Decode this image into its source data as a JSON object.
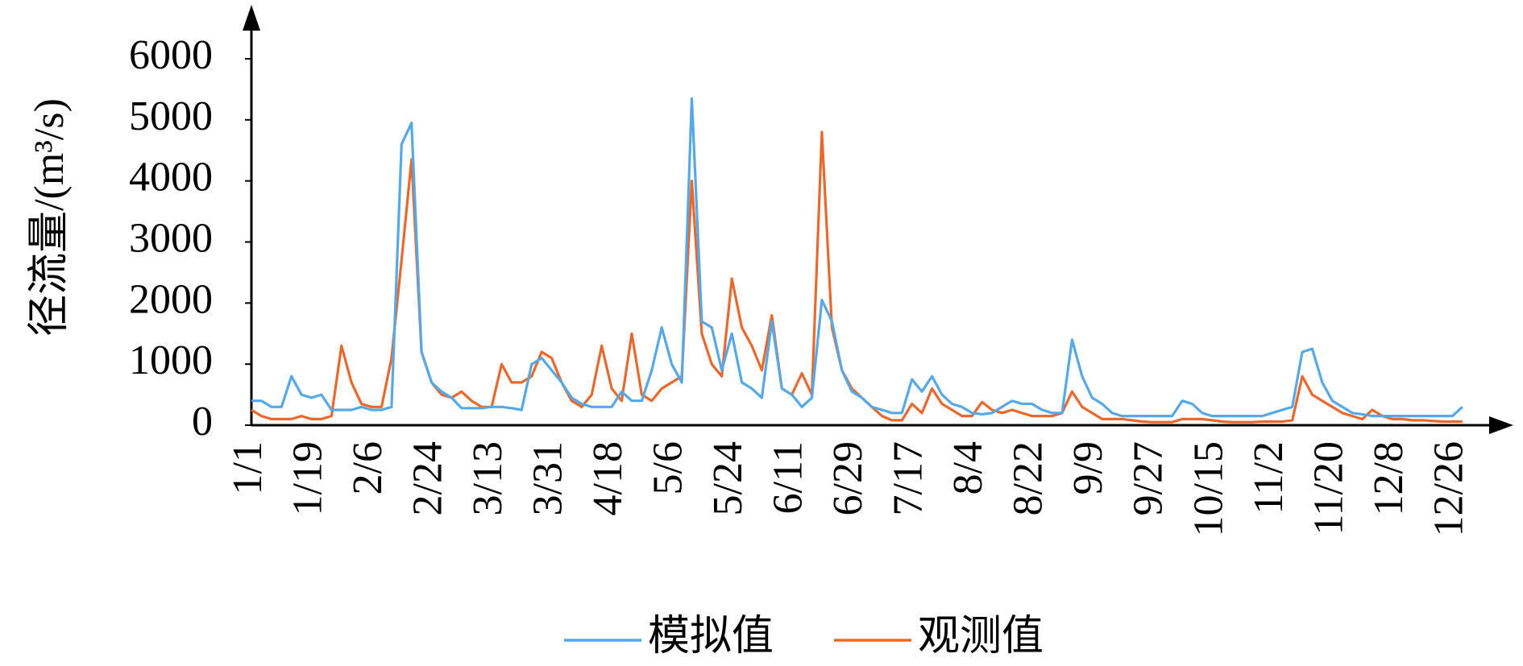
{
  "chart_data": {
    "type": "line",
    "y_label": "径流量/(m³/s)",
    "categories": [
      "1/1",
      null,
      null,
      null,
      null,
      null,
      "1/19",
      null,
      null,
      null,
      null,
      null,
      "2/6",
      null,
      null,
      null,
      null,
      null,
      "2/24",
      null,
      null,
      null,
      null,
      null,
      "3/13",
      null,
      null,
      null,
      null,
      null,
      "3/31",
      null,
      null,
      null,
      null,
      null,
      "4/18",
      null,
      null,
      null,
      null,
      null,
      "5/6",
      null,
      null,
      null,
      null,
      null,
      "5/24",
      null,
      null,
      null,
      null,
      null,
      "6/11",
      null,
      null,
      null,
      null,
      null,
      "6/29",
      null,
      null,
      null,
      null,
      null,
      "7/17",
      null,
      null,
      null,
      null,
      null,
      "8/4",
      null,
      null,
      null,
      null,
      null,
      "8/22",
      null,
      null,
      null,
      null,
      null,
      "9/9",
      null,
      null,
      null,
      null,
      null,
      "9/27",
      null,
      null,
      null,
      null,
      null,
      "10/15",
      null,
      null,
      null,
      null,
      null,
      "11/2",
      null,
      null,
      null,
      null,
      null,
      "11/20",
      null,
      null,
      null,
      null,
      null,
      "12/8",
      null,
      null,
      null,
      null,
      null,
      "12/26",
      null
    ],
    "series": [
      {
        "name": "模拟值",
        "color": "#56a8e6",
        "values": [
          400,
          400,
          300,
          300,
          800,
          500,
          450,
          500,
          250,
          250,
          250,
          300,
          250,
          250,
          300,
          4600,
          4950,
          1200,
          700,
          550,
          450,
          280,
          280,
          280,
          300,
          300,
          280,
          250,
          1000,
          1100,
          900,
          700,
          450,
          350,
          300,
          300,
          300,
          550,
          400,
          400,
          900,
          1600,
          1000,
          700,
          5350,
          1700,
          1600,
          900,
          1500,
          700,
          600,
          450,
          1700,
          600,
          500,
          300,
          450,
          2050,
          1700,
          900,
          550,
          450,
          300,
          250,
          200,
          200,
          750,
          550,
          800,
          500,
          350,
          300,
          200,
          180,
          200,
          300,
          400,
          350,
          350,
          250,
          200,
          200,
          1400,
          800,
          450,
          350,
          200,
          150,
          150,
          150,
          150,
          150,
          150,
          400,
          350,
          200,
          150,
          150,
          150,
          150,
          150,
          150,
          200,
          250,
          300,
          1200,
          1250,
          700,
          400,
          300,
          200,
          180,
          150,
          150,
          150,
          150,
          150,
          150,
          150,
          150,
          150,
          300
        ]
      },
      {
        "name": "观测值",
        "color": "#e8692e",
        "values": [
          250,
          150,
          100,
          100,
          100,
          150,
          100,
          100,
          150,
          1300,
          700,
          350,
          300,
          300,
          1100,
          2700,
          4350,
          1200,
          700,
          500,
          450,
          550,
          400,
          300,
          300,
          1000,
          700,
          700,
          800,
          1200,
          1100,
          700,
          400,
          300,
          500,
          1300,
          600,
          400,
          1500,
          500,
          400,
          600,
          700,
          800,
          4000,
          1500,
          1000,
          800,
          2400,
          1600,
          1300,
          900,
          1800,
          600,
          500,
          850,
          500,
          4800,
          1600,
          900,
          600,
          450,
          300,
          150,
          80,
          80,
          350,
          200,
          600,
          350,
          250,
          150,
          150,
          380,
          250,
          200,
          250,
          200,
          150,
          150,
          150,
          200,
          550,
          300,
          200,
          100,
          100,
          100,
          80,
          60,
          50,
          50,
          50,
          100,
          100,
          100,
          80,
          60,
          50,
          50,
          50,
          60,
          60,
          60,
          80,
          800,
          500,
          400,
          300,
          200,
          150,
          100,
          250,
          150,
          100,
          100,
          80,
          80,
          70,
          60,
          60,
          60
        ]
      }
    ],
    "ylim": [
      0,
      6000
    ],
    "yticks": [
      0,
      1000,
      2000,
      3000,
      4000,
      5000,
      6000
    ],
    "legend": "bottom"
  }
}
